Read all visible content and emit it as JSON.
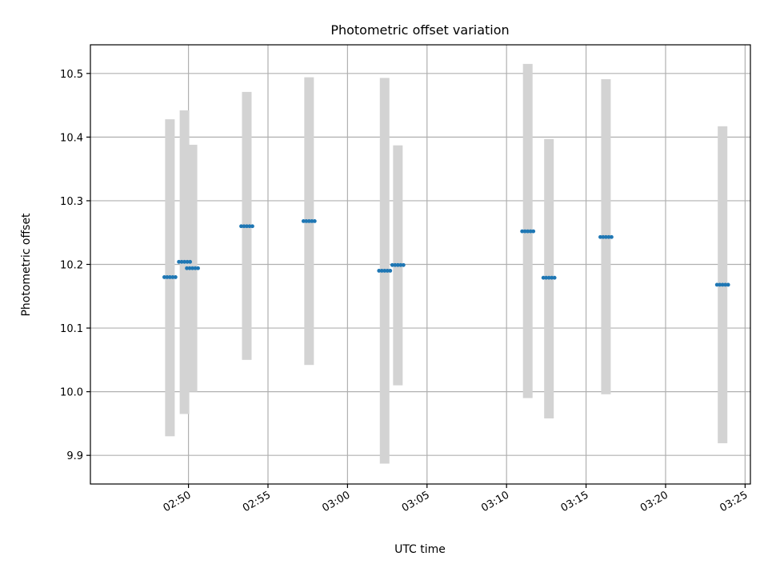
{
  "chart_data": {
    "type": "scatter",
    "title": "Photometric offset variation",
    "xlabel": "UTC time",
    "ylabel": "Photometric offset",
    "xlim": [
      "02:43:50",
      "03:25:20"
    ],
    "ylim": [
      9.855,
      10.545
    ],
    "grid": true,
    "x_ticks": [
      "02:50",
      "02:55",
      "03:00",
      "03:05",
      "03:10",
      "03:15",
      "03:20",
      "03:25"
    ],
    "y_ticks": [
      "9.9",
      "10.0",
      "10.1",
      "10.2",
      "10.3",
      "10.4",
      "10.5"
    ],
    "points": [
      {
        "t": "02:48:50",
        "y": 10.18,
        "err_low": 9.93,
        "err_high": 10.428
      },
      {
        "t": "02:49:45",
        "y": 10.204,
        "err_low": 9.965,
        "err_high": 10.442
      },
      {
        "t": "02:50:15",
        "y": 10.194,
        "err_low": 10.0,
        "err_high": 10.388
      },
      {
        "t": "02:53:40",
        "y": 10.26,
        "err_low": 10.05,
        "err_high": 10.471
      },
      {
        "t": "02:57:35",
        "y": 10.268,
        "err_low": 10.042,
        "err_high": 10.494
      },
      {
        "t": "03:02:20",
        "y": 10.19,
        "err_low": 9.887,
        "err_high": 10.493
      },
      {
        "t": "03:03:10",
        "y": 10.199,
        "err_low": 10.01,
        "err_high": 10.387
      },
      {
        "t": "03:11:20",
        "y": 10.252,
        "err_low": 9.99,
        "err_high": 10.515
      },
      {
        "t": "03:12:40",
        "y": 10.179,
        "err_low": 9.958,
        "err_high": 10.397
      },
      {
        "t": "03:16:15",
        "y": 10.243,
        "err_low": 9.996,
        "err_high": 10.491
      },
      {
        "t": "03:23:35",
        "y": 10.168,
        "err_low": 9.919,
        "err_high": 10.417
      }
    ],
    "colors": {
      "marker": "#1f77b4",
      "errorbar": "#d3d3d3",
      "grid": "#b0b0b0"
    }
  }
}
